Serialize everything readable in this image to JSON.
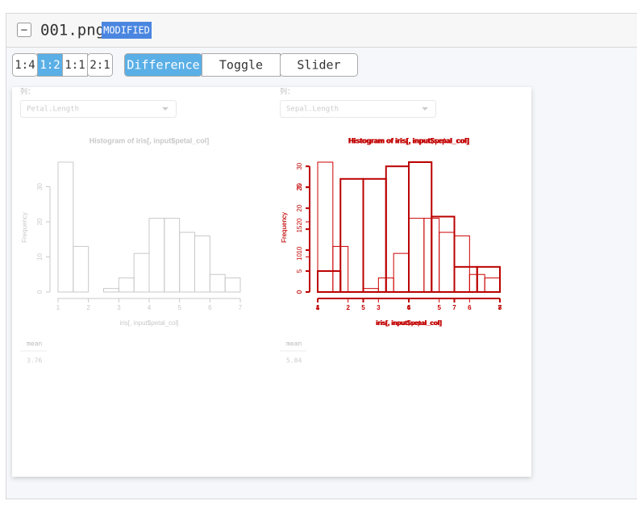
{
  "header": {
    "collapse": "−",
    "filename": "001.png",
    "badge": "MODIFIED"
  },
  "scale_buttons": [
    "1:4",
    "1:2",
    "1:1",
    "2:1"
  ],
  "active_scale": 1,
  "mode_buttons": [
    "Difference",
    "Toggle",
    "Slider"
  ],
  "active_mode": 0,
  "panels": [
    {
      "column_label": "列：",
      "select": "Petal.Length",
      "histogram": {
        "title": "Histogram of iris[, input$petal_col]",
        "ylabel": "Frequency",
        "xlabel": "iris[, input$petal_col]",
        "bins": [
          1,
          1.5,
          2,
          2.5,
          3,
          3.5,
          4,
          4.5,
          5,
          5.5,
          6,
          6.5,
          7
        ],
        "counts": [
          37,
          13,
          0,
          1,
          4,
          11,
          21,
          21,
          17,
          16,
          5,
          4
        ],
        "xlim": [
          1,
          7
        ],
        "ylim": [
          0,
          37
        ],
        "xticks": [
          1,
          2,
          3,
          4,
          5,
          6,
          7
        ],
        "yticks": [
          0,
          10,
          20,
          30
        ]
      },
      "table": {
        "header": "mean",
        "value": 3.76
      }
    },
    {
      "column_label": "列：",
      "select": "Sepal.Length",
      "histogram": {
        "title": "Histogram of iris[, input$sepal_col]",
        "ylabel": "Frequency",
        "xlabel": "iris[, input$sepal_col]",
        "bins": [
          4,
          4.5,
          5,
          5.5,
          6,
          6.5,
          7,
          7.5,
          8
        ],
        "counts": [
          5,
          27,
          27,
          30,
          31,
          18,
          6,
          6
        ],
        "xlim": [
          4,
          8
        ],
        "ylim": [
          0,
          31
        ],
        "xticks": [
          4,
          5,
          6,
          7,
          8
        ],
        "yticks": [
          0,
          5,
          10,
          15,
          20,
          25,
          30
        ]
      },
      "table": {
        "header": "mean",
        "value": 5.84
      }
    }
  ]
}
